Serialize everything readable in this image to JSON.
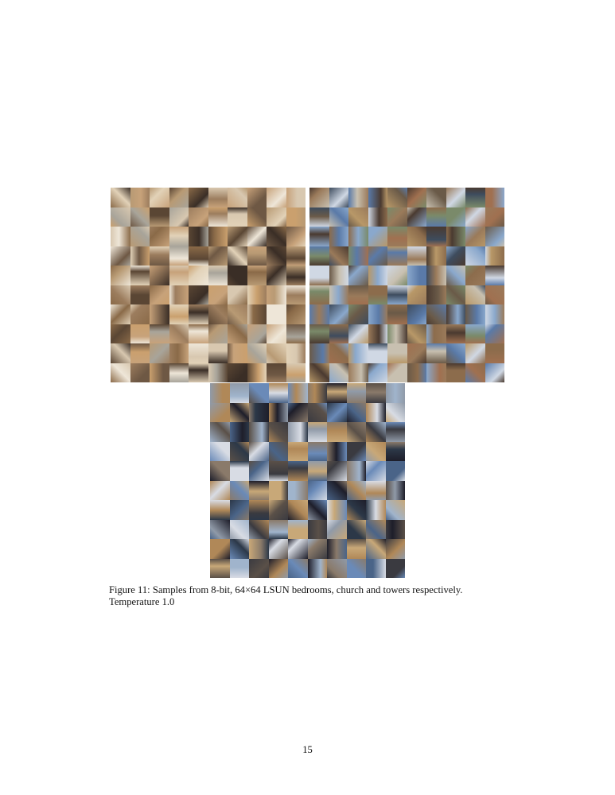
{
  "figure": {
    "grids": [
      {
        "id": "bedrooms",
        "subject": "LSUN bedrooms",
        "rows": 10,
        "cols": 10,
        "palette": [
          "#8a6a48",
          "#b89a74",
          "#d8c8b0",
          "#5a4634",
          "#c7a27a",
          "#eee6d8",
          "#9c7d5e",
          "#6e5844",
          "#a8a49a",
          "#caa06e",
          "#3a2e26",
          "#e2d2b8"
        ]
      },
      {
        "id": "church",
        "subject": "LSUN church",
        "rows": 10,
        "cols": 10,
        "palette": [
          "#5a7aa8",
          "#8aa8cc",
          "#b89868",
          "#6a5a48",
          "#9a7a5a",
          "#c8c0b0",
          "#3e4c5e",
          "#7a8a6a",
          "#a07050",
          "#d0d8e4",
          "#4a3a30",
          "#8c6c4c"
        ]
      },
      {
        "id": "towers",
        "subject": "LSUN towers",
        "rows": 10,
        "cols": 10,
        "palette": [
          "#6a8ab8",
          "#2c3848",
          "#a0b4cc",
          "#5a5048",
          "#c8a878",
          "#1e1e2a",
          "#8a7a6a",
          "#d8dce4",
          "#4a6488",
          "#b08858",
          "#3a3a40",
          "#909aa8"
        ]
      }
    ],
    "caption": {
      "label": "Figure 11:",
      "text_before": "Samples from 8-bit,",
      "math": "64×64",
      "text_after": "LSUN bedrooms, church and towers respectively. Temperature 1.0"
    }
  },
  "page_number": "15"
}
